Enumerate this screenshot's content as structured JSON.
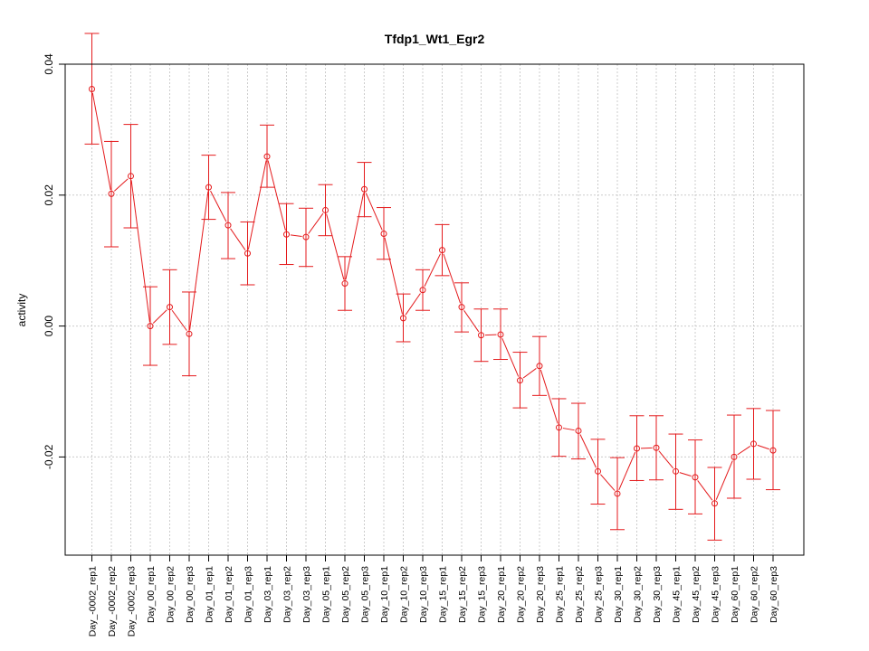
{
  "chart_data": {
    "type": "line",
    "title": "Tfdp1_Wt1_Egr2",
    "ylabel": "activity",
    "xlabel": "",
    "ylim": [
      -0.035,
      0.04
    ],
    "yticks": [
      -0.02,
      0.0,
      0.02,
      0.04
    ],
    "ytick_labels": [
      "-0.02",
      "0.00",
      "0.02",
      "0.04"
    ],
    "grid": true,
    "color": "#e41a1c",
    "categories": [
      "Day_-0002_rep1",
      "Day_-0002_rep2",
      "Day_-0002_rep3",
      "Day_00_rep1",
      "Day_00_rep2",
      "Day_00_rep3",
      "Day_01_rep1",
      "Day_01_rep2",
      "Day_01_rep3",
      "Day_03_rep1",
      "Day_03_rep2",
      "Day_03_rep3",
      "Day_05_rep1",
      "Day_05_rep2",
      "Day_05_rep3",
      "Day_10_rep1",
      "Day_10_rep2",
      "Day_10_rep3",
      "Day_15_rep1",
      "Day_15_rep2",
      "Day_15_rep3",
      "Day_20_rep1",
      "Day_20_rep2",
      "Day_20_rep3",
      "Day_25_rep1",
      "Day_25_rep2",
      "Day_25_rep3",
      "Day_30_rep1",
      "Day_30_rep2",
      "Day_30_rep3",
      "Day_45_rep1",
      "Day_45_rep2",
      "Day_45_rep3",
      "Day_60_rep1",
      "Day_60_rep2",
      "Day_60_rep3"
    ],
    "values": [
      0.0362,
      0.0202,
      0.0229,
      0.0,
      0.0029,
      -0.0012,
      0.0212,
      0.0154,
      0.0111,
      0.0259,
      0.014,
      0.0136,
      0.0177,
      0.0065,
      0.0209,
      0.0141,
      0.0012,
      0.0055,
      0.0116,
      0.0029,
      -0.0014,
      -0.0013,
      -0.0083,
      -0.0061,
      -0.0155,
      -0.016,
      -0.0222,
      -0.0256,
      -0.0187,
      -0.0186,
      -0.0222,
      -0.0231,
      -0.0271,
      -0.02,
      -0.018,
      -0.019
    ],
    "upper": [
      0.0447,
      0.0282,
      0.0308,
      0.006,
      0.0086,
      0.0052,
      0.0261,
      0.0204,
      0.0159,
      0.0307,
      0.0187,
      0.018,
      0.0216,
      0.0106,
      0.025,
      0.0181,
      0.0049,
      0.0086,
      0.0155,
      0.0066,
      0.0026,
      0.0026,
      -0.004,
      -0.0016,
      -0.0111,
      -0.0118,
      -0.0173,
      -0.0201,
      -0.0137,
      -0.0137,
      -0.0165,
      -0.0174,
      -0.0216,
      -0.0136,
      -0.0126,
      -0.0129
    ],
    "lower": [
      0.0278,
      0.0121,
      0.015,
      -0.006,
      -0.0028,
      -0.0076,
      0.0163,
      0.0103,
      0.0063,
      0.0212,
      0.0094,
      0.0091,
      0.0138,
      0.0024,
      0.0167,
      0.0102,
      -0.0024,
      0.0024,
      0.0077,
      -0.0009,
      -0.0054,
      -0.0051,
      -0.0125,
      -0.0106,
      -0.0199,
      -0.0203,
      -0.0272,
      -0.0311,
      -0.0236,
      -0.0235,
      -0.028,
      -0.0287,
      -0.0327,
      -0.0263,
      -0.0234,
      -0.025
    ]
  }
}
